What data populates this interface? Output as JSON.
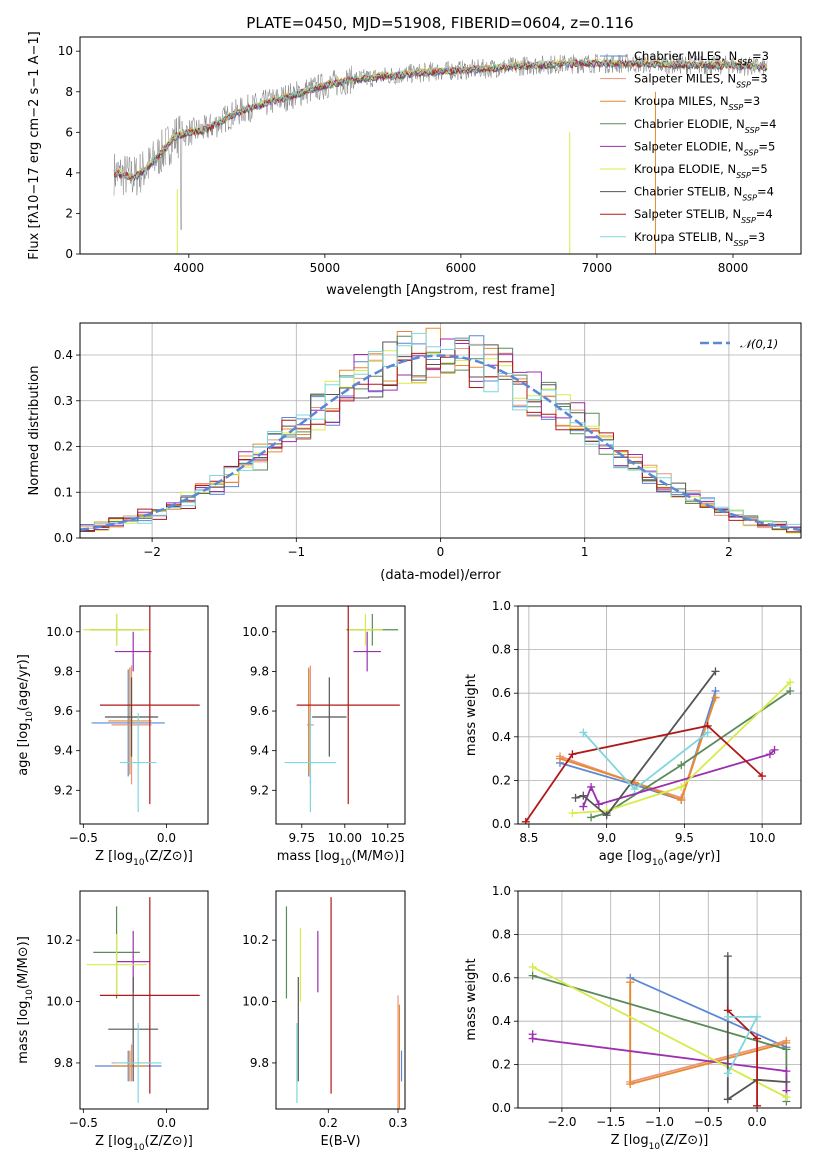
{
  "figure": {
    "title": "PLATE=0450, MJD=51908, FIBERID=0604, z=0.116"
  },
  "colors": {
    "Chabrier MILES": "#5a87d6",
    "Salpeter MILES": "#e9967a",
    "Kroupa MILES": "#e88a2e",
    "Chabrier ELODIE": "#5a8a5a",
    "Salpeter ELODIE": "#9b2fae",
    "Kroupa ELODIE": "#d7eb4a",
    "Chabrier STELIB": "#555555",
    "Salpeter STELIB": "#b01919",
    "Kroupa STELIB": "#7fd6de",
    "data": "#808080",
    "normal": "#5a87d6"
  },
  "legend_spectrum": [
    {
      "name": "Chabrier MILES",
      "nssp": "3"
    },
    {
      "name": "Salpeter MILES",
      "nssp": "3"
    },
    {
      "name": "Kroupa MILES",
      "nssp": "3"
    },
    {
      "name": "Chabrier ELODIE",
      "nssp": "4"
    },
    {
      "name": "Salpeter ELODIE",
      "nssp": "5"
    },
    {
      "name": "Kroupa ELODIE",
      "nssp": "5"
    },
    {
      "name": "Chabrier STELIB",
      "nssp": "4"
    },
    {
      "name": "Salpeter STELIB",
      "nssp": "4"
    },
    {
      "name": "Kroupa STELIB",
      "nssp": "3"
    }
  ],
  "chart_data": [
    {
      "type": "line",
      "id": "spectrum",
      "xlabel": "wavelength [Angstrom, rest frame]",
      "ylabel": "Flux [fλ10−17 erg cm−2 s−1 A−1]",
      "xlim": [
        3200,
        8500
      ],
      "ylim": [
        0,
        10.7
      ],
      "xticks": [
        4000,
        5000,
        6000,
        7000,
        8000
      ],
      "yticks": [
        0,
        2,
        4,
        6,
        8,
        10
      ],
      "series_note_points": [
        [
          3450,
          4.0
        ],
        [
          3600,
          3.8
        ],
        [
          3700,
          4.3
        ],
        [
          3800,
          5.0
        ],
        [
          3900,
          5.8
        ],
        [
          4000,
          6.0
        ],
        [
          4100,
          6.1
        ],
        [
          4200,
          6.4
        ],
        [
          4300,
          6.8
        ],
        [
          4400,
          7.1
        ],
        [
          4600,
          7.5
        ],
        [
          4800,
          7.9
        ],
        [
          5000,
          8.3
        ],
        [
          5200,
          8.6
        ],
        [
          5500,
          8.8
        ],
        [
          5800,
          9.0
        ],
        [
          6100,
          9.1
        ],
        [
          6500,
          9.3
        ],
        [
          6900,
          9.4
        ],
        [
          7200,
          9.4
        ],
        [
          7600,
          9.35
        ],
        [
          8000,
          9.3
        ],
        [
          8250,
          9.2
        ]
      ],
      "grid": false,
      "legend": "upper right"
    },
    {
      "type": "area",
      "id": "residual_histogram",
      "xlabel": "(data-model)/error",
      "ylabel": "Normed distribution",
      "xlim": [
        -2.5,
        2.5
      ],
      "ylim": [
        0,
        0.47
      ],
      "xticks": [
        -2,
        -1,
        0,
        1,
        2
      ],
      "yticks": [
        0.0,
        0.1,
        0.2,
        0.3,
        0.4
      ],
      "legend_label": "𝒩(0,1)",
      "legend": "upper right",
      "grid": true,
      "bin_width": 0.1
    },
    {
      "type": "scatter",
      "id": "age_vs_Z",
      "xlabel": "Z [log10(Z/Z⊙)]",
      "ylabel": "age  [log10(age/yr)]",
      "xlim": [
        -0.52,
        0.25
      ],
      "ylim": [
        9.03,
        10.13
      ],
      "xticks": [
        -0.5,
        0.0
      ],
      "yticks": [
        9.2,
        9.4,
        9.6,
        9.8,
        10.0
      ],
      "points": [
        {
          "model": "Chabrier MILES",
          "x": -0.23,
          "y": 9.54,
          "xerr": 0.22,
          "yerr": 0.27
        },
        {
          "model": "Salpeter MILES",
          "x": -0.21,
          "y": 9.53,
          "xerr": 0.12,
          "yerr": 0.3
        },
        {
          "model": "Kroupa MILES",
          "x": -0.22,
          "y": 9.55,
          "xerr": 0.13,
          "yerr": 0.27
        },
        {
          "model": "Chabrier ELODIE",
          "x": -0.3,
          "y": 10.01,
          "xerr": 0.16,
          "yerr": 0.08
        },
        {
          "model": "Salpeter ELODIE",
          "x": -0.2,
          "y": 9.9,
          "xerr": 0.11,
          "yerr": 0.1
        },
        {
          "model": "Kroupa ELODIE",
          "x": -0.3,
          "y": 10.01,
          "xerr": 0.2,
          "yerr": 0.08
        },
        {
          "model": "Chabrier STELIB",
          "x": -0.21,
          "y": 9.57,
          "xerr": 0.16,
          "yerr": 0.2
        },
        {
          "model": "Salpeter STELIB",
          "x": -0.1,
          "y": 9.63,
          "xerr": 0.3,
          "yerr": 0.5
        },
        {
          "model": "Kroupa STELIB",
          "x": -0.17,
          "y": 9.34,
          "xerr": 0.11,
          "yerr": 0.25
        }
      ]
    },
    {
      "type": "scatter",
      "id": "age_vs_mass",
      "xlabel": "mass [log10(M/M⊙)]",
      "ylabel": "",
      "xlim": [
        9.6,
        10.35
      ],
      "ylim": [
        9.03,
        10.13
      ],
      "xticks": [
        9.75,
        10.0,
        10.25
      ],
      "yticks": [
        9.2,
        9.4,
        9.6,
        9.8,
        10.0
      ],
      "points": [
        {
          "model": "Chabrier MILES",
          "x": 9.79,
          "y": 9.54,
          "xerr": 0.0,
          "yerr": 0.27
        },
        {
          "model": "Salpeter MILES",
          "x": 9.8,
          "y": 9.53,
          "xerr": 0.02,
          "yerr": 0.3
        },
        {
          "model": "Kroupa MILES",
          "x": 9.79,
          "y": 9.55,
          "xerr": 0.0,
          "yerr": 0.27
        },
        {
          "model": "Chabrier ELODIE",
          "x": 10.16,
          "y": 10.01,
          "xerr": 0.15,
          "yerr": 0.08
        },
        {
          "model": "Salpeter ELODIE",
          "x": 10.13,
          "y": 9.9,
          "xerr": 0.08,
          "yerr": 0.1
        },
        {
          "model": "Kroupa ELODIE",
          "x": 10.12,
          "y": 10.01,
          "xerr": 0.1,
          "yerr": 0.08
        },
        {
          "model": "Chabrier STELIB",
          "x": 9.91,
          "y": 9.57,
          "xerr": 0.1,
          "yerr": 0.2
        },
        {
          "model": "Salpeter STELIB",
          "x": 10.02,
          "y": 9.63,
          "xerr": 0.3,
          "yerr": 0.5
        },
        {
          "model": "Kroupa STELIB",
          "x": 9.8,
          "y": 9.34,
          "xerr": 0.15,
          "yerr": 0.25
        }
      ]
    },
    {
      "type": "line",
      "id": "massweight_vs_age",
      "xlabel": "age  [log10(age/yr)]",
      "ylabel": "mass weight",
      "xlim": [
        8.43,
        10.25
      ],
      "ylim": [
        0,
        1.0
      ],
      "xticks": [
        8.5,
        9.0,
        9.5,
        10.0
      ],
      "yticks": [
        0.0,
        0.2,
        0.4,
        0.6,
        0.8,
        1.0
      ],
      "grid": true,
      "series": [
        {
          "model": "Chabrier MILES",
          "x": [
            8.7,
            9.18,
            9.48,
            9.7
          ],
          "y": [
            0.28,
            0.18,
            0.11,
            0.61
          ]
        },
        {
          "model": "Salpeter MILES",
          "x": [
            8.7,
            9.18,
            9.48,
            9.7
          ],
          "y": [
            0.31,
            0.19,
            0.12,
            0.58
          ]
        },
        {
          "model": "Kroupa MILES",
          "x": [
            8.7,
            9.18,
            9.48,
            9.7
          ],
          "y": [
            0.3,
            0.19,
            0.11,
            0.58
          ]
        },
        {
          "model": "Chabrier ELODIE",
          "x": [
            8.9,
            9.0,
            9.48,
            10.18
          ],
          "y": [
            0.03,
            0.05,
            0.27,
            0.61
          ]
        },
        {
          "model": "Salpeter ELODIE",
          "x": [
            8.85,
            8.9,
            8.95,
            10.05,
            10.08
          ],
          "y": [
            0.08,
            0.17,
            0.09,
            0.32,
            0.34
          ]
        },
        {
          "model": "Kroupa ELODIE",
          "x": [
            8.78,
            9.0,
            9.48,
            10.18
          ],
          "y": [
            0.05,
            0.06,
            0.17,
            0.65
          ]
        },
        {
          "model": "Chabrier STELIB",
          "x": [
            8.8,
            8.85,
            9.0,
            9.7
          ],
          "y": [
            0.12,
            0.13,
            0.04,
            0.7
          ]
        },
        {
          "model": "Salpeter STELIB",
          "x": [
            8.48,
            8.78,
            9.65,
            10.0
          ],
          "y": [
            0.01,
            0.32,
            0.45,
            0.22
          ]
        },
        {
          "model": "Kroupa STELIB",
          "x": [
            8.85,
            9.18,
            9.65
          ],
          "y": [
            0.42,
            0.16,
            0.42
          ]
        }
      ]
    },
    {
      "type": "scatter",
      "id": "mass_vs_Z",
      "xlabel": "Z [log10(Z/Z⊙)]",
      "ylabel": "mass [log10(M/M⊙)]",
      "xlim": [
        -0.52,
        0.25
      ],
      "ylim": [
        9.65,
        10.36
      ],
      "xticks": [
        -0.5,
        0.0
      ],
      "yticks": [
        9.8,
        10.0,
        10.2
      ],
      "points": [
        {
          "model": "Chabrier MILES",
          "x": -0.23,
          "y": 9.79,
          "xerr": 0.2,
          "yerr": 0.05
        },
        {
          "model": "Salpeter MILES",
          "x": -0.21,
          "y": 9.8,
          "xerr": 0.12,
          "yerr": 0.06
        },
        {
          "model": "Kroupa MILES",
          "x": -0.22,
          "y": 9.79,
          "xerr": 0.1,
          "yerr": 0.05
        },
        {
          "model": "Chabrier ELODIE",
          "x": -0.3,
          "y": 10.16,
          "xerr": 0.14,
          "yerr": 0.15
        },
        {
          "model": "Salpeter ELODIE",
          "x": -0.2,
          "y": 10.13,
          "xerr": 0.1,
          "yerr": 0.1
        },
        {
          "model": "Kroupa ELODIE",
          "x": -0.3,
          "y": 10.12,
          "xerr": 0.18,
          "yerr": 0.1
        },
        {
          "model": "Chabrier STELIB",
          "x": -0.2,
          "y": 9.91,
          "xerr": 0.15,
          "yerr": 0.17
        },
        {
          "model": "Salpeter STELIB",
          "x": -0.1,
          "y": 10.02,
          "xerr": 0.3,
          "yerr": 0.32
        },
        {
          "model": "Kroupa STELIB",
          "x": -0.17,
          "y": 9.8,
          "xerr": 0.14,
          "yerr": 0.13
        }
      ]
    },
    {
      "type": "scatter",
      "id": "mass_vs_ebv",
      "xlabel": "E(B-V)",
      "ylabel": "",
      "xlim": [
        0.125,
        0.31
      ],
      "ylim": [
        9.65,
        10.36
      ],
      "xticks": [
        0.1,
        0.2,
        0.3
      ],
      "yticks": [
        9.8,
        10.0,
        10.2
      ],
      "points": [
        {
          "model": "Chabrier MILES",
          "x": 0.305,
          "y": 9.79,
          "xerr": 0.0,
          "yerr": 0.05
        },
        {
          "model": "Salpeter MILES",
          "x": 0.3,
          "y": 9.8,
          "xerr": 0.0,
          "yerr": 0.22
        },
        {
          "model": "Kroupa MILES",
          "x": 0.302,
          "y": 9.79,
          "xerr": 0.0,
          "yerr": 0.2
        },
        {
          "model": "Chabrier ELODIE",
          "x": 0.14,
          "y": 10.16,
          "xerr": 0.0,
          "yerr": 0.15
        },
        {
          "model": "Salpeter ELODIE",
          "x": 0.185,
          "y": 10.13,
          "xerr": 0.0,
          "yerr": 0.1
        },
        {
          "model": "Kroupa ELODIE",
          "x": 0.16,
          "y": 10.12,
          "xerr": 0.0,
          "yerr": 0.12
        },
        {
          "model": "Chabrier STELIB",
          "x": 0.157,
          "y": 9.91,
          "xerr": 0.0,
          "yerr": 0.17
        },
        {
          "model": "Salpeter STELIB",
          "x": 0.204,
          "y": 10.02,
          "xerr": 0.0,
          "yerr": 0.32
        },
        {
          "model": "Kroupa STELIB",
          "x": 0.155,
          "y": 9.8,
          "xerr": 0.0,
          "yerr": 0.13
        }
      ]
    },
    {
      "type": "line",
      "id": "massweight_vs_Z",
      "xlabel": "Z [log10(Z/Z⊙)]",
      "ylabel": "mass weight",
      "xlim": [
        -2.45,
        0.45
      ],
      "ylim": [
        0,
        1.0
      ],
      "xticks": [
        -2.0,
        -1.5,
        -1.0,
        -0.5,
        0.0
      ],
      "yticks": [
        0.0,
        0.2,
        0.4,
        0.6,
        0.8,
        1.0
      ],
      "grid": true,
      "series": [
        {
          "model": "Chabrier MILES",
          "x": [
            -1.3,
            0.3
          ],
          "y": [
            0.6,
            0.28
          ]
        },
        {
          "model": "Salpeter MILES",
          "x": [
            -1.3,
            -1.3,
            0.3
          ],
          "y": [
            0.58,
            0.12,
            0.31
          ]
        },
        {
          "model": "Kroupa MILES",
          "x": [
            -1.3,
            -1.3,
            0.3
          ],
          "y": [
            0.58,
            0.11,
            0.3
          ]
        },
        {
          "model": "Chabrier ELODIE",
          "x": [
            -2.3,
            0.3,
            0.3
          ],
          "y": [
            0.61,
            0.27,
            0.03
          ]
        },
        {
          "model": "Salpeter ELODIE",
          "x": [
            -2.3,
            -2.3,
            0.3,
            0.3
          ],
          "y": [
            0.34,
            0.32,
            0.17,
            0.08
          ]
        },
        {
          "model": "Kroupa ELODIE",
          "x": [
            -2.3,
            0.3
          ],
          "y": [
            0.65,
            0.05
          ]
        },
        {
          "model": "Chabrier STELIB",
          "x": [
            -0.3,
            -0.3,
            0.0,
            0.3
          ],
          "y": [
            0.7,
            0.04,
            0.13,
            0.12
          ]
        },
        {
          "model": "Salpeter STELIB",
          "x": [
            -0.3,
            0.0,
            0.0
          ],
          "y": [
            0.45,
            0.32,
            0.01
          ]
        },
        {
          "model": "Kroupa STELIB",
          "x": [
            -0.3,
            0.0,
            -0.3
          ],
          "y": [
            0.42,
            0.42,
            0.16
          ]
        }
      ]
    }
  ]
}
